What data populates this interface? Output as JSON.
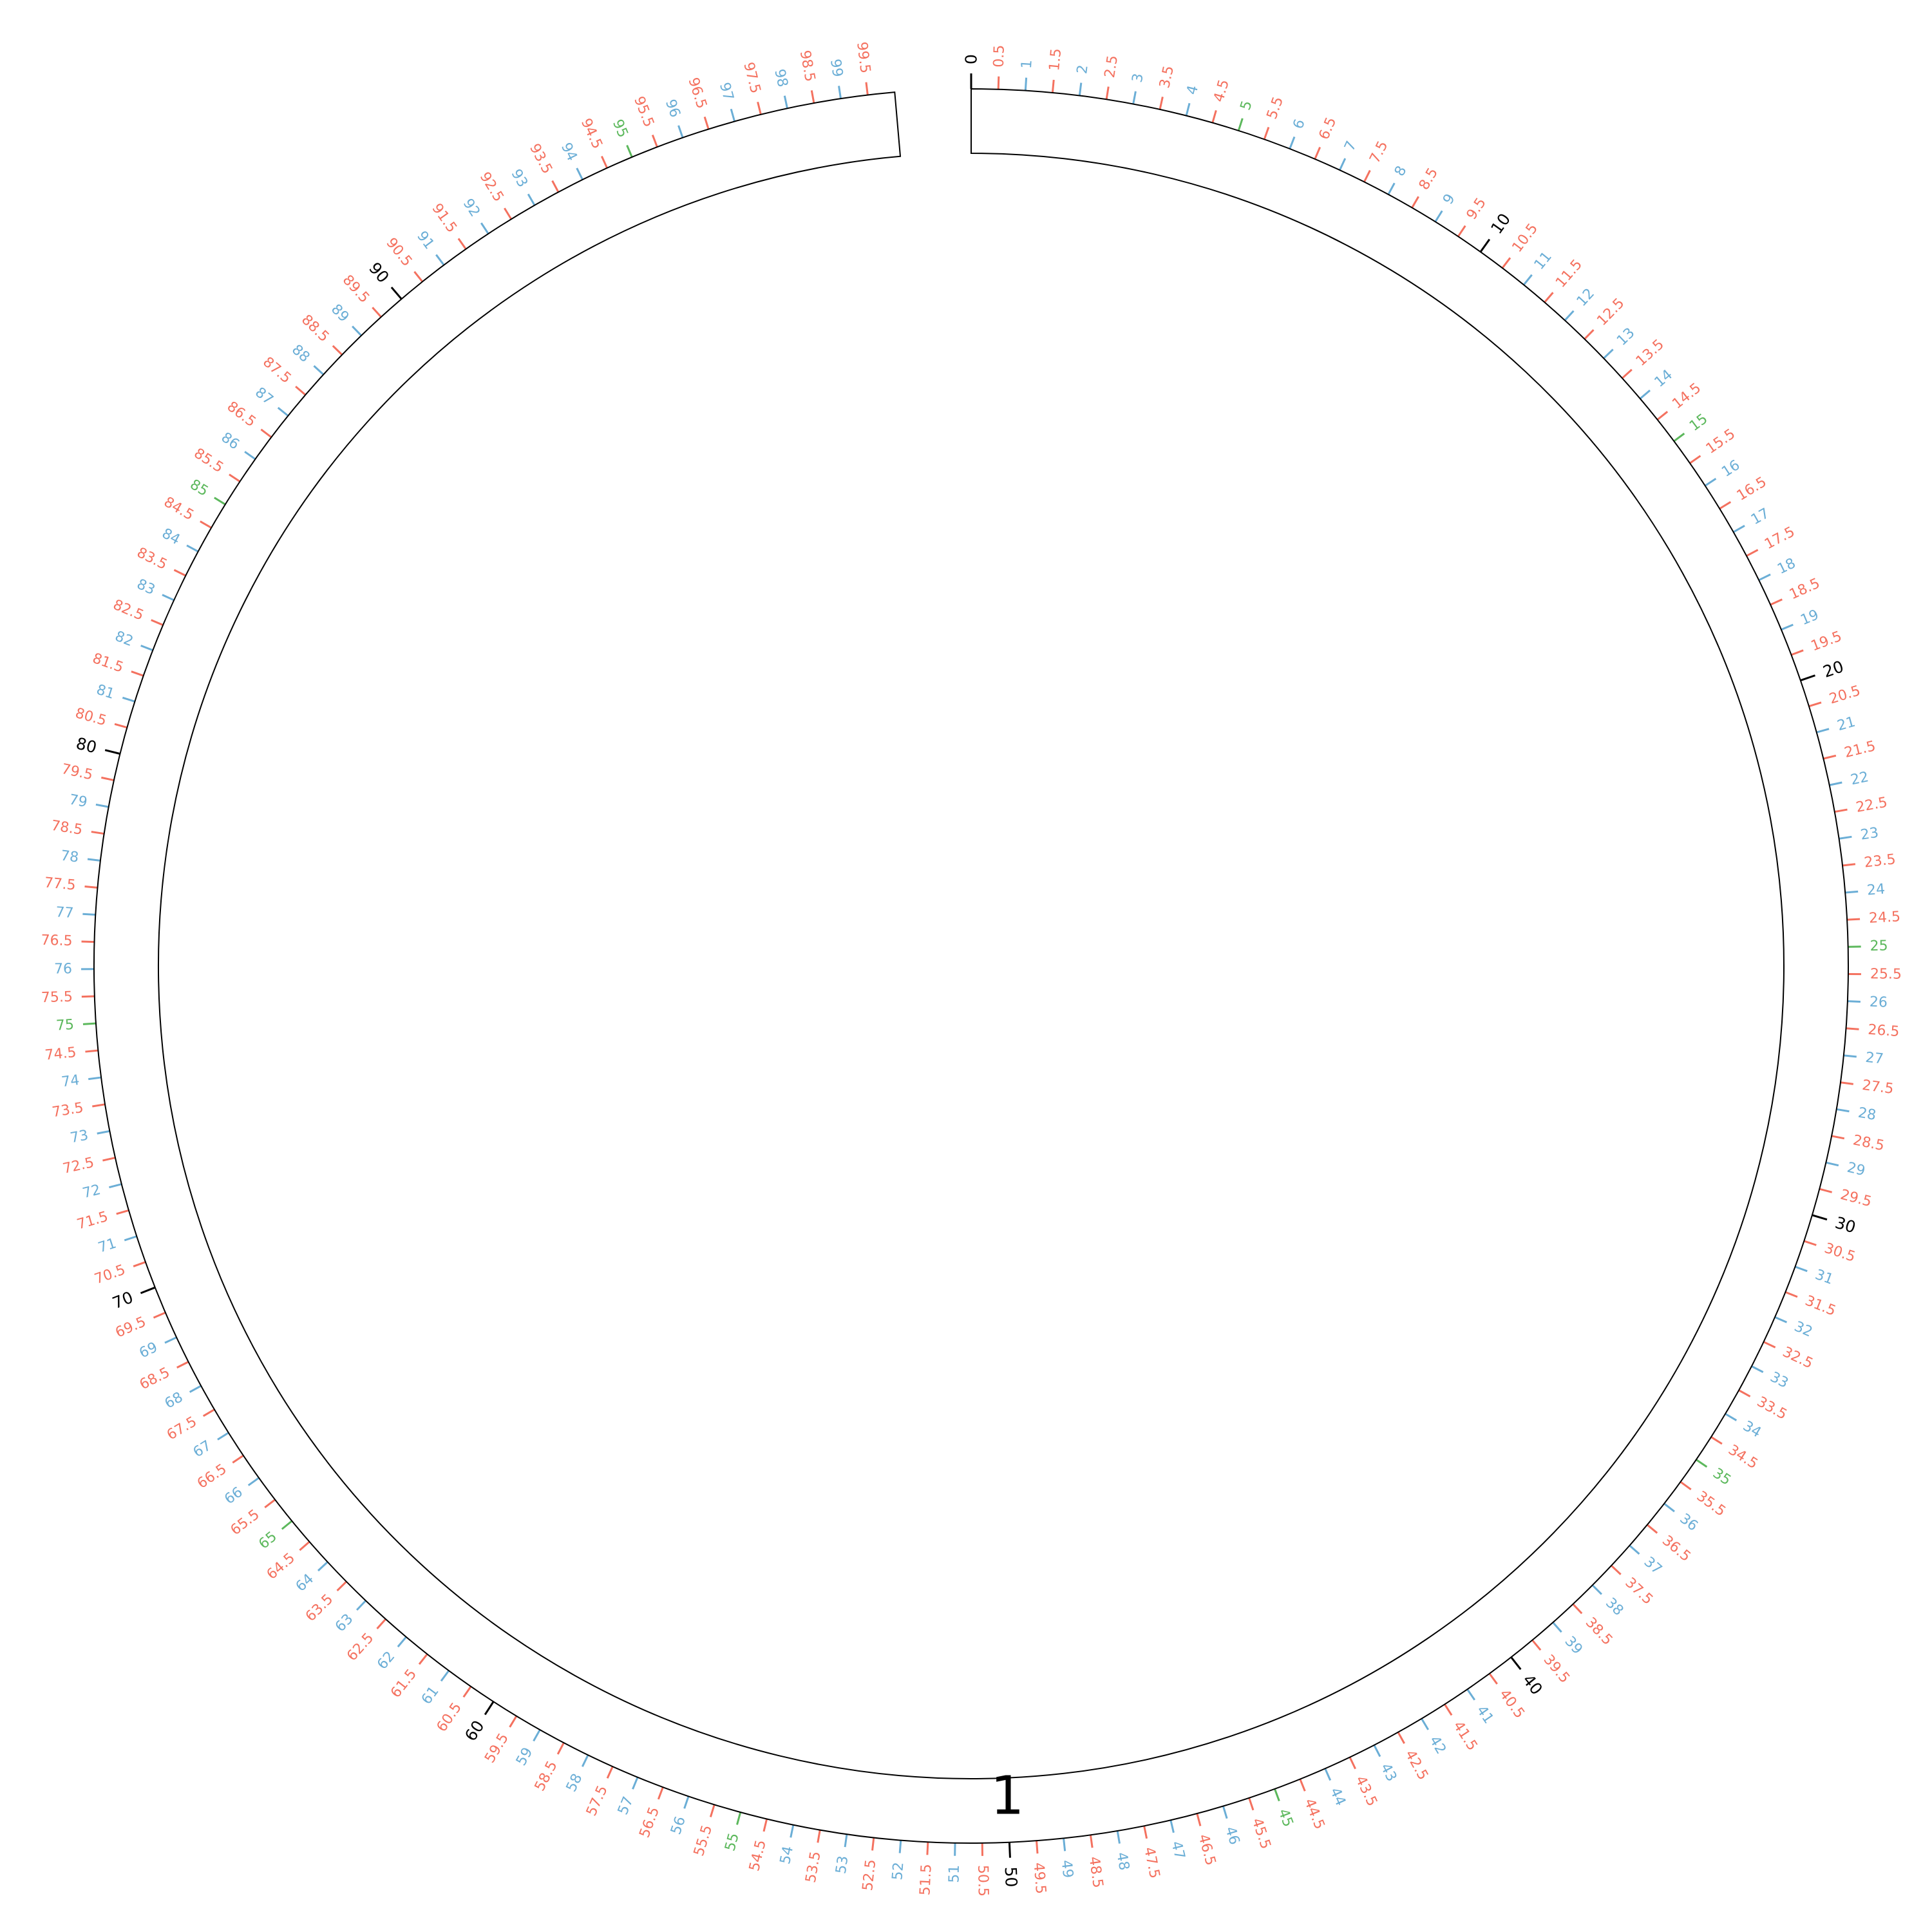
{
  "track": {
    "label": "1",
    "start": 0,
    "end": 100,
    "outline_color": "#000000"
  },
  "scale": {
    "min": 0,
    "max": 99.5,
    "step": 0.5,
    "major_interval": 10,
    "medium_interval": 5,
    "unit_interval": 1
  },
  "colors": {
    "major": "#000000",
    "medium": "#5cb85c",
    "unit": "#6baed6",
    "half": "#f4715f"
  },
  "tick_labels": [
    "0",
    "0.5",
    "1",
    "1.5",
    "2",
    "2.5",
    "3",
    "3.5",
    "4",
    "4.5",
    "5",
    "5.5",
    "6",
    "6.5",
    "7",
    "7.5",
    "8",
    "8.5",
    "9",
    "9.5",
    "10",
    "10.5",
    "11",
    "11.5",
    "12",
    "12.5",
    "13",
    "13.5",
    "14",
    "14.5",
    "15",
    "15.5",
    "16",
    "16.5",
    "17",
    "17.5",
    "18",
    "18.5",
    "19",
    "19.5",
    "20",
    "20.5",
    "21",
    "21.5",
    "22",
    "22.5",
    "23",
    "23.5",
    "24",
    "24.5",
    "25",
    "25.5",
    "26",
    "26.5",
    "27",
    "27.5",
    "28",
    "28.5",
    "29",
    "29.5",
    "30",
    "30.5",
    "31",
    "31.5",
    "32",
    "32.5",
    "33",
    "33.5",
    "34",
    "34.5",
    "35",
    "35.5",
    "36",
    "36.5",
    "37",
    "37.5",
    "38",
    "38.5",
    "39",
    "39.5",
    "40",
    "40.5",
    "41",
    "41.5",
    "42",
    "42.5",
    "43",
    "43.5",
    "44",
    "44.5",
    "45",
    "45.5",
    "46",
    "46.5",
    "47",
    "47.5",
    "48",
    "48.5",
    "49",
    "49.5",
    "50",
    "50.5",
    "51",
    "51.5",
    "52",
    "52.5",
    "53",
    "53.5",
    "54",
    "54.5",
    "55",
    "55.5",
    "56",
    "56.5",
    "57",
    "57.5",
    "58",
    "58.5",
    "59",
    "59.5",
    "60",
    "60.5",
    "61",
    "61.5",
    "62",
    "62.5",
    "63",
    "63.5",
    "64",
    "64.5",
    "65",
    "65.5",
    "66",
    "66.5",
    "67",
    "67.5",
    "68",
    "68.5",
    "69",
    "69.5",
    "70",
    "70.5",
    "71",
    "71.5",
    "72",
    "72.5",
    "73",
    "73.5",
    "74",
    "74.5",
    "75",
    "75.5",
    "76",
    "76.5",
    "77",
    "77.5",
    "78",
    "78.5",
    "79",
    "79.5",
    "80",
    "80.5",
    "81",
    "81.5",
    "82",
    "82.5",
    "83",
    "83.5",
    "84",
    "84.5",
    "85",
    "85.5",
    "86",
    "86.5",
    "87",
    "87.5",
    "88",
    "88.5",
    "89",
    "89.5",
    "90",
    "90.5",
    "91",
    "91.5",
    "92",
    "92.5",
    "93",
    "93.5",
    "94",
    "94.5",
    "95",
    "95.5",
    "96",
    "96.5",
    "97",
    "97.5",
    "98",
    "98.5",
    "99",
    "99.5"
  ]
}
